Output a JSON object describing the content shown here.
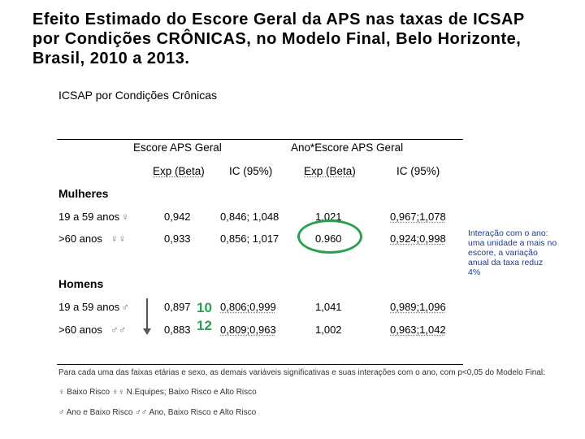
{
  "title": "Efeito Estimado do Escore Geral da APS nas taxas de ICSAP por Condições CRÔNICAS, no Modelo Final, Belo Horizonte, Brasil, 2010 a 2013.",
  "table": {
    "heading": "ICSAP por Condições Crônicas",
    "groups": {
      "escore": "Escore APS Geral",
      "ano_escore": "Ano*Escore APS Geral"
    },
    "columns": {
      "exp_beta": "Exp (Beta)",
      "ic": "IC (95%)"
    },
    "women": {
      "label": "Mulheres",
      "rows": [
        {
          "label": "19 a 59 anos",
          "symbol": "♀",
          "exp1": "0,942",
          "ic1": "0,846; 1,048",
          "exp2": "1,021",
          "ic2": "0,967;1,078"
        },
        {
          "label": ">60 anos",
          "symbol": "♀♀",
          "exp1": "0,933",
          "ic1": "0,856; 1,017",
          "exp2": "0.960",
          "ic2": "0,924;0,998"
        }
      ]
    },
    "men": {
      "label": "Homens",
      "rows": [
        {
          "label": "19 a 59 anos",
          "symbol": "♂",
          "exp1": "0,897",
          "ic1": "0,806;0,999",
          "exp2": "1,041",
          "ic2": "0,989;1,096"
        },
        {
          "label": ">60 anos",
          "symbol": "♂♂",
          "exp1": "0,883",
          "ic1": "0,809;0,963",
          "exp2": "1,002",
          "ic2": "0,963;1,042"
        }
      ]
    },
    "footnotes": [
      "Para cada uma das faixas etárias e sexo, as demais variáveis significativas e suas interações com o ano, com p<0,05 do Modelo Final:",
      "♀ Baixo Risco ♀♀ N.Equipes; Baixo Risco e Alto Risco",
      "♂ Ano e Baixo Risco ♂♂ Ano, Baixo Risco e Alto Risco"
    ]
  },
  "annotations": {
    "green_values": [
      "10",
      "12"
    ],
    "note": "Interação com o ano: uma unidade a mais no escore, a variação anual da taxa reduz 4%",
    "colors": {
      "highlight": "#28a050",
      "note": "#1a3c8c"
    }
  }
}
